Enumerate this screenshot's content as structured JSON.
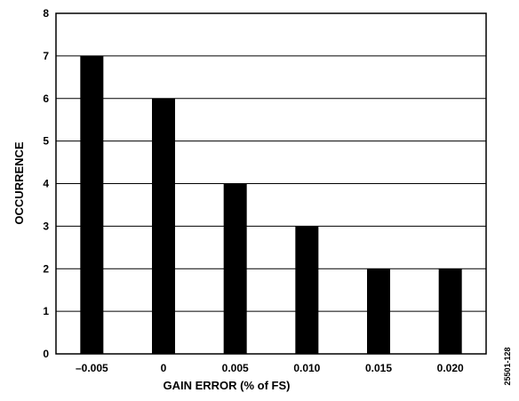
{
  "chart_data": {
    "type": "bar",
    "categories": [
      "–0.005",
      "0",
      "0.005",
      "0.010",
      "0.015",
      "0.020"
    ],
    "values": [
      7,
      6,
      4,
      3,
      2,
      2
    ],
    "xlabel": "GAIN ERROR (% of FS)",
    "ylabel": "OCCURRENCE",
    "ylim": [
      0,
      8
    ],
    "yticks": [
      "0",
      "1",
      "2",
      "3",
      "4",
      "5",
      "6",
      "7",
      "8"
    ],
    "grid": "horizontal",
    "bar_color": "#000000",
    "figure_id": "25501-128"
  }
}
